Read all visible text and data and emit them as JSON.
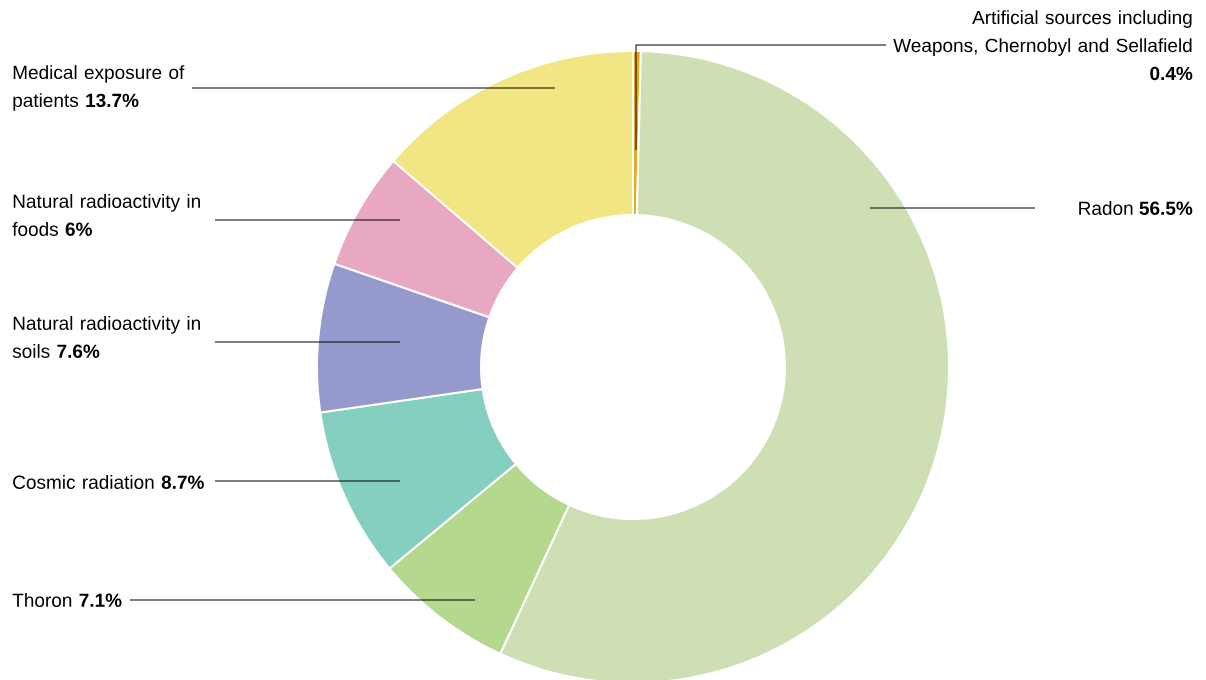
{
  "chart_data": {
    "type": "donut",
    "categories": [
      "Artificial sources including Weapons, Chernobyl and Sellafield",
      "Radon",
      "Thoron",
      "Cosmic radiation",
      "Natural radioactivity in soils",
      "Natural radioactivity in foods",
      "Medical exposure of patients"
    ],
    "values": [
      0.4,
      56.5,
      7.1,
      8.7,
      7.6,
      6,
      13.7
    ],
    "value_labels": [
      "0.4%",
      "56.5%",
      "7.1%",
      "8.7%",
      "7.6%",
      "6%",
      "13.7%"
    ],
    "colors": [
      "#e8a91a",
      "#cfdfb4",
      "#b3d88e",
      "#84cfc0",
      "#9599cb",
      "#e9a8c1",
      "#f2e584"
    ]
  }
}
